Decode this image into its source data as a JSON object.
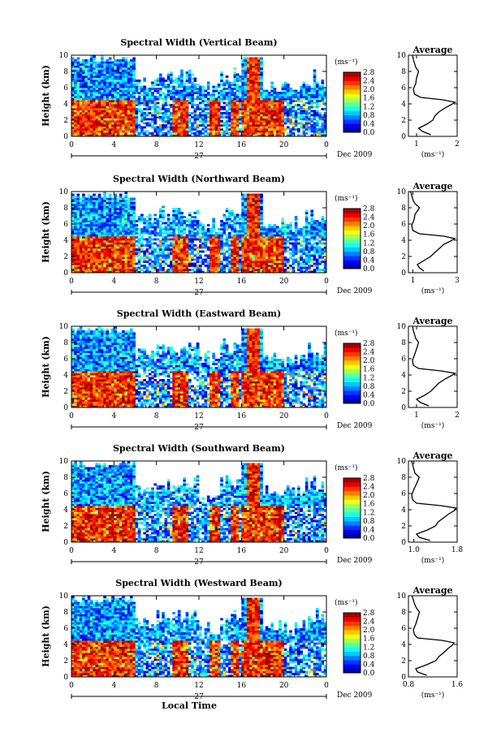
{
  "chart_data": [
    {
      "type": "heatmap",
      "title": "Spectral Width (Vertical Beam)",
      "ylabel": "Height (km)",
      "colorbar_unit": "(ms⁻¹)",
      "colorbar_ticks": [
        "2.8",
        "2.4",
        "2.0",
        "1.6",
        "1.2",
        "0.8",
        "0.4",
        "0.0"
      ],
      "clim": [
        0.0,
        2.8
      ],
      "xlim": [
        0,
        24
      ],
      "ylim": [
        0,
        10
      ],
      "x_ticks": [
        "0",
        "4",
        "8",
        "12",
        "16",
        "20",
        "0"
      ],
      "y_ticks": [
        "0",
        "2",
        "4",
        "6",
        "8",
        "10"
      ],
      "date_day": "27",
      "date_month_year": "Dec 2009",
      "profile": {
        "title": "Average",
        "xlabel": "(ms⁻¹)",
        "xlim": [
          0.8,
          2.0
        ],
        "x_ticks": [
          "1",
          "2"
        ],
        "ylim": [
          0,
          10
        ],
        "y_ticks": [
          "0",
          "2",
          "4",
          "6",
          "8",
          "10"
        ],
        "heights": [
          0.2,
          0.6,
          1.0,
          1.5,
          2.0,
          2.5,
          3.0,
          3.5,
          3.9,
          4.2,
          4.5,
          4.8,
          5.2,
          5.8,
          6.5,
          7.2,
          8.0,
          8.5,
          9.0,
          9.5,
          10.0
        ],
        "values": [
          1.35,
          1.15,
          1.05,
          1.25,
          1.4,
          1.45,
          1.55,
          1.7,
          1.85,
          1.95,
          1.65,
          1.1,
          0.95,
          0.92,
          0.98,
          1.0,
          1.05,
          0.98,
          0.95,
          0.92,
          0.9
        ]
      }
    },
    {
      "type": "heatmap",
      "title": "Spectral Width (Northward Beam)",
      "ylabel": "Height (km)",
      "colorbar_unit": "(ms⁻¹)",
      "colorbar_ticks": [
        "2.8",
        "2.4",
        "2.0",
        "1.6",
        "1.2",
        "0.8",
        "0.4",
        "0.0"
      ],
      "clim": [
        0.0,
        2.8
      ],
      "xlim": [
        0,
        24
      ],
      "ylim": [
        0,
        10
      ],
      "x_ticks": [
        "0",
        "4",
        "8",
        "12",
        "16",
        "20",
        "0"
      ],
      "y_ticks": [
        "0",
        "2",
        "4",
        "6",
        "8",
        "10"
      ],
      "date_day": "27",
      "date_month_year": "Dec 2009",
      "profile": {
        "title": "Average",
        "xlabel": "(ms⁻¹)",
        "xlim": [
          0.8,
          3.0
        ],
        "x_ticks": [
          "1",
          "3"
        ],
        "ylim": [
          0,
          10
        ],
        "y_ticks": [
          "0",
          "2",
          "4",
          "6",
          "8",
          "10"
        ],
        "heights": [
          0.2,
          0.6,
          1.0,
          1.5,
          2.0,
          2.5,
          3.0,
          3.5,
          3.9,
          4.2,
          4.5,
          4.8,
          5.2,
          5.8,
          6.5,
          7.2,
          8.0,
          8.5,
          9.0,
          9.5,
          10.0
        ],
        "values": [
          1.5,
          1.3,
          1.2,
          1.5,
          1.8,
          2.0,
          2.2,
          2.4,
          2.7,
          2.9,
          2.4,
          1.3,
          1.0,
          0.95,
          1.05,
          1.1,
          1.3,
          1.1,
          1.0,
          0.95,
          0.9
        ]
      }
    },
    {
      "type": "heatmap",
      "title": "Spectral Width (Eastward Beam)",
      "ylabel": "Height (km)",
      "colorbar_unit": "(ms⁻¹)",
      "colorbar_ticks": [
        "2.8",
        "2.4",
        "2.0",
        "1.6",
        "1.2",
        "0.8",
        "0.4",
        "0.0"
      ],
      "clim": [
        0.0,
        2.8
      ],
      "xlim": [
        0,
        24
      ],
      "ylim": [
        0,
        10
      ],
      "x_ticks": [
        "0",
        "4",
        "8",
        "12",
        "16",
        "20",
        "0"
      ],
      "y_ticks": [
        "0",
        "2",
        "4",
        "6",
        "8",
        "10"
      ],
      "date_day": "27",
      "date_month_year": "Dec 2009",
      "profile": {
        "title": "Average",
        "xlabel": "(ms⁻¹)",
        "xlim": [
          0.8,
          2.0
        ],
        "x_ticks": [
          "1",
          "2"
        ],
        "ylim": [
          0,
          10
        ],
        "y_ticks": [
          "0",
          "2",
          "4",
          "6",
          "8",
          "10"
        ],
        "heights": [
          0.2,
          0.6,
          1.0,
          1.5,
          2.0,
          2.5,
          3.0,
          3.5,
          3.9,
          4.2,
          4.5,
          4.8,
          5.2,
          5.8,
          6.5,
          7.2,
          8.0,
          8.5,
          9.0,
          9.5,
          10.0
        ],
        "values": [
          1.3,
          1.1,
          1.0,
          1.2,
          1.35,
          1.45,
          1.55,
          1.7,
          1.85,
          1.95,
          1.6,
          1.05,
          0.92,
          0.9,
          0.95,
          1.0,
          1.05,
          0.98,
          0.95,
          0.92,
          0.9
        ]
      }
    },
    {
      "type": "heatmap",
      "title": "Spectral Width (Southward Beam)",
      "ylabel": "Height (km)",
      "colorbar_unit": "(ms⁻¹)",
      "colorbar_ticks": [
        "2.8",
        "2.4",
        "2.0",
        "1.6",
        "1.2",
        "0.8",
        "0.4",
        "0.0"
      ],
      "clim": [
        0.0,
        2.8
      ],
      "xlim": [
        0,
        24
      ],
      "ylim": [
        0,
        10
      ],
      "x_ticks": [
        "0",
        "4",
        "8",
        "12",
        "16",
        "20",
        "0"
      ],
      "y_ticks": [
        "0",
        "2",
        "4",
        "6",
        "8",
        "10"
      ],
      "date_day": "27",
      "date_month_year": "Dec 2009",
      "profile": {
        "title": "Average",
        "xlabel": "(ms⁻¹)",
        "xlim": [
          0.9,
          1.8
        ],
        "x_ticks": [
          "1.0",
          "1.8"
        ],
        "ylim": [
          0,
          10
        ],
        "y_ticks": [
          "0",
          "2",
          "4",
          "6",
          "8",
          "10"
        ],
        "heights": [
          0.2,
          0.6,
          1.0,
          1.5,
          2.0,
          2.5,
          3.0,
          3.5,
          3.9,
          4.2,
          4.5,
          4.8,
          5.2,
          5.8,
          6.5,
          7.2,
          8.0,
          8.5,
          9.0,
          9.5,
          10.0
        ],
        "values": [
          1.3,
          1.1,
          1.05,
          1.25,
          1.4,
          1.45,
          1.55,
          1.65,
          1.75,
          1.78,
          1.5,
          1.05,
          0.98,
          0.96,
          1.0,
          1.05,
          1.1,
          1.02,
          1.0,
          0.98,
          0.96
        ]
      }
    },
    {
      "type": "heatmap",
      "title": "Spectral Width (Westward Beam)",
      "ylabel": "Height (km)",
      "xlabel": "Local Time",
      "colorbar_unit": "(ms⁻¹)",
      "colorbar_ticks": [
        "2.8",
        "2.4",
        "2.0",
        "1.6",
        "1.2",
        "0.8",
        "0.4",
        "0.0"
      ],
      "clim": [
        0.0,
        2.8
      ],
      "xlim": [
        0,
        24
      ],
      "ylim": [
        0,
        10
      ],
      "x_ticks": [
        "0",
        "4",
        "8",
        "12",
        "16",
        "20",
        "0"
      ],
      "y_ticks": [
        "0",
        "2",
        "4",
        "6",
        "8",
        "10"
      ],
      "date_day": "27",
      "date_month_year": "Dec 2009",
      "profile": {
        "title": "Average",
        "xlabel": "(ms⁻¹)",
        "xlim": [
          0.8,
          1.6
        ],
        "x_ticks": [
          "0.8",
          "1.6"
        ],
        "ylim": [
          0,
          10
        ],
        "y_ticks": [
          "0",
          "2",
          "4",
          "6",
          "8",
          "10"
        ],
        "heights": [
          0.2,
          0.6,
          1.0,
          1.5,
          2.0,
          2.5,
          3.0,
          3.5,
          3.9,
          4.2,
          4.5,
          4.8,
          5.2,
          5.8,
          6.5,
          7.2,
          8.0,
          8.5,
          9.0,
          9.5,
          10.0
        ],
        "values": [
          1.1,
          0.95,
          0.92,
          1.1,
          1.25,
          1.3,
          1.38,
          1.45,
          1.52,
          1.55,
          1.35,
          0.95,
          0.9,
          0.88,
          0.92,
          0.95,
          0.98,
          0.93,
          0.9,
          0.88,
          0.86
        ]
      }
    }
  ]
}
